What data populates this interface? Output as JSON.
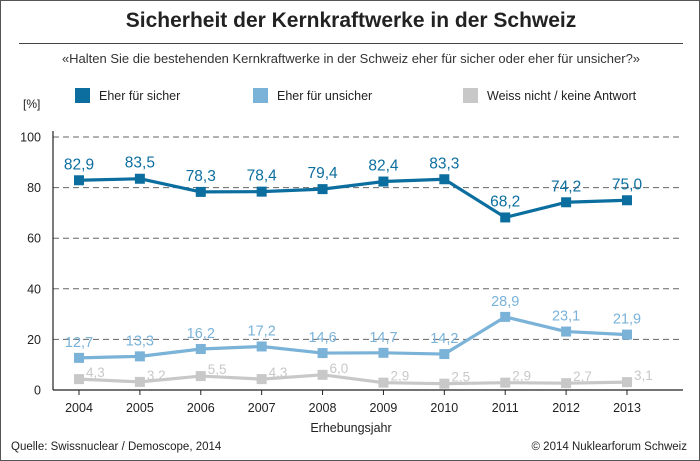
{
  "title": "Sicherheit der Kernkraftwerke in der Schweiz",
  "subtitle": "«Halten Sie die bestehenden Kernkraftwerke in der Schweiz eher für sicher oder eher für unsicher?»",
  "source": "Quelle: Swissnuclear / Demoscope, 2014",
  "copyright": "© 2014 Nuklearforum Schweiz",
  "chart_data": {
    "type": "line",
    "x": [
      "2004",
      "2005",
      "2006",
      "2007",
      "2008",
      "2009",
      "2010",
      "2011",
      "2012",
      "2013"
    ],
    "xlabel": "Erhebungsjahr",
    "ylabel": "[%]",
    "ylim": [
      0,
      100
    ],
    "yticks": [
      "0",
      "20",
      "40",
      "60",
      "80",
      "100"
    ],
    "grid": "horizontal dashed",
    "legend_position": "top",
    "series": [
      {
        "name": "Eher für sicher",
        "color": "#0b6e9f",
        "values": [
          82.9,
          83.5,
          78.3,
          78.4,
          79.4,
          82.4,
          83.3,
          68.2,
          74.2,
          75.0
        ],
        "labels": [
          "82,9",
          "83,5",
          "78,3",
          "78,4",
          "79,4",
          "82,4",
          "83,3",
          "68,2",
          "74,2",
          "75,0"
        ]
      },
      {
        "name": "Eher für unsicher",
        "color": "#7ab2d8",
        "values": [
          12.7,
          13.3,
          16.2,
          17.2,
          14.6,
          14.7,
          14.2,
          28.9,
          23.1,
          21.9
        ],
        "labels": [
          "12,7",
          "13,3",
          "16,2",
          "17,2",
          "14,6",
          "14,7",
          "14,2",
          "28,9",
          "23,1",
          "21,9"
        ]
      },
      {
        "name": "Weiss nicht / keine Antwort",
        "color": "#c8c8c8",
        "values": [
          4.3,
          3.2,
          5.5,
          4.3,
          6.0,
          2.9,
          2.5,
          2.9,
          2.7,
          3.1
        ],
        "labels": [
          "4,3",
          "3,2",
          "5,5",
          "4,3",
          "6,0",
          "2,9",
          "2,5",
          "2,9",
          "2,7",
          "3,1"
        ]
      }
    ]
  }
}
